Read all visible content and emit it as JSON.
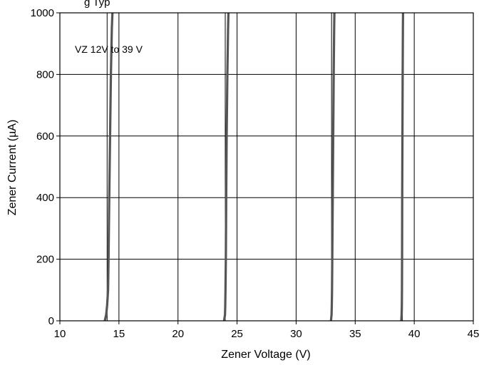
{
  "chart_data": {
    "type": "line",
    "title": "g  Typ",
    "xlabel": "Zener Voltage (V)",
    "ylabel": "Zener Current (µA)",
    "xlim": [
      10,
      45
    ],
    "ylim": [
      0,
      1000
    ],
    "xticks": [
      10,
      15,
      20,
      25,
      30,
      35,
      40,
      45
    ],
    "yticks": [
      0,
      200,
      400,
      600,
      800,
      1000
    ],
    "vertical_grid_at": [
      14,
      15,
      20,
      24,
      25,
      30,
      33,
      35,
      39,
      40
    ],
    "grid": true,
    "annotation": "VZ 12V to 39 V",
    "series_color": "#555555",
    "series": [
      {
        "x": [
          13.8,
          13.92,
          14.0,
          14.08,
          14.12,
          14.18,
          14.25,
          14.32,
          14.4,
          14.45
        ],
        "y": [
          0,
          20,
          50,
          100,
          200,
          400,
          600,
          800,
          950,
          1000
        ]
      },
      {
        "x": [
          23.9,
          23.98,
          24.0,
          24.02,
          24.05,
          24.08,
          24.12,
          24.18,
          24.24,
          24.27
        ],
        "y": [
          0,
          20,
          50,
          100,
          200,
          400,
          600,
          800,
          950,
          1000
        ]
      },
      {
        "x": [
          32.95,
          33.0,
          33.02,
          33.04,
          33.06,
          33.1,
          33.14,
          33.18,
          33.22,
          33.24
        ],
        "y": [
          0,
          20,
          50,
          100,
          200,
          400,
          600,
          800,
          950,
          1000
        ]
      },
      {
        "x": [
          38.9,
          38.93,
          38.95,
          38.96,
          38.97,
          38.98,
          39.0,
          39.02,
          39.04,
          39.05
        ],
        "y": [
          0,
          20,
          50,
          100,
          200,
          400,
          600,
          800,
          950,
          1000
        ]
      }
    ]
  }
}
